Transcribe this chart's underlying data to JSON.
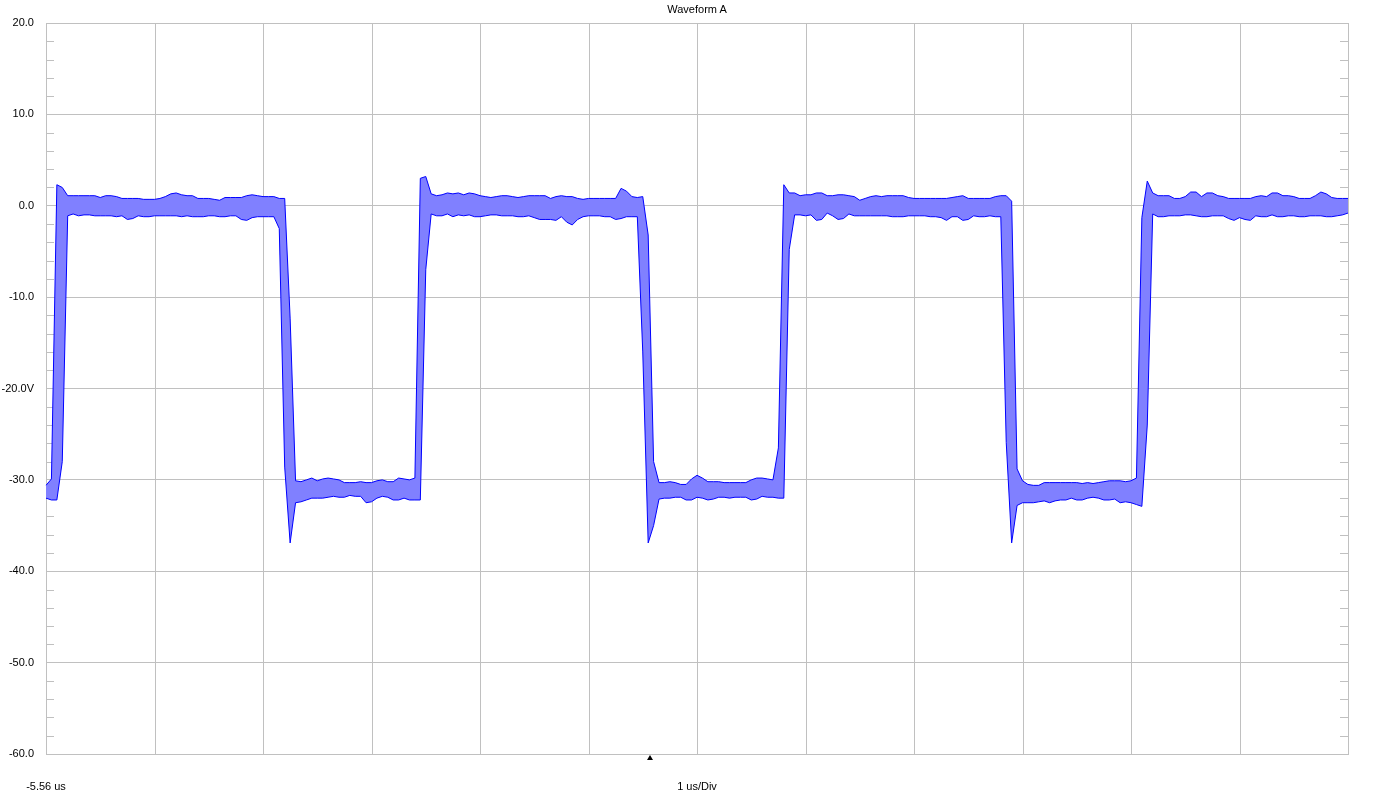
{
  "chart_data": {
    "type": "line",
    "title": "Waveform A",
    "xlabel": "1 us/Div",
    "annotations": [
      "-5.56 us"
    ],
    "categories": [
      null,
      null,
      null,
      null,
      null,
      null,
      null,
      null,
      null,
      null,
      null,
      null,
      null,
      null,
      null,
      null,
      null,
      null,
      null,
      null,
      null,
      null,
      null,
      null,
      null,
      null,
      null,
      null,
      null,
      null,
      null,
      null,
      null,
      null,
      null,
      null,
      null,
      null,
      null,
      null,
      null,
      null,
      null,
      null,
      null,
      null,
      null,
      null,
      null,
      null,
      null,
      null,
      null,
      null,
      null,
      null,
      null,
      null,
      null,
      null,
      null,
      null,
      null,
      null,
      null,
      null,
      null,
      null,
      null,
      null,
      null,
      null,
      null,
      null,
      null,
      null,
      null,
      null,
      null,
      null,
      null,
      null,
      null,
      null,
      null,
      null,
      null,
      null,
      null,
      null,
      null,
      null,
      null,
      null,
      null,
      null,
      null,
      null,
      null,
      null,
      null,
      null,
      null,
      null,
      null,
      null,
      null,
      null,
      null,
      null,
      null,
      null,
      null,
      null,
      null,
      null,
      null,
      null,
      null,
      null,
      null,
      null,
      null,
      null,
      null,
      null,
      null,
      null,
      null,
      null,
      null,
      null,
      null,
      null,
      null,
      null,
      null,
      null,
      null,
      null,
      null,
      null,
      null,
      null,
      null,
      null,
      null,
      null,
      null,
      null,
      null,
      null,
      null,
      null,
      null,
      null,
      null,
      null,
      null,
      null,
      null,
      null,
      null,
      null,
      null,
      null,
      null,
      null,
      null,
      null,
      null,
      null,
      null,
      null,
      null,
      null,
      null,
      null,
      null,
      null,
      null,
      null,
      null,
      null,
      null,
      null,
      null,
      null,
      null,
      null,
      null,
      null,
      null,
      null,
      null,
      null,
      null,
      null,
      null,
      null,
      null,
      null,
      null,
      null,
      null,
      null,
      null,
      null,
      null,
      null,
      null,
      null,
      null,
      null,
      null,
      null,
      null,
      null,
      null,
      null,
      null,
      null,
      null,
      null,
      null,
      null,
      null,
      null,
      null,
      null,
      null,
      null,
      null,
      null,
      null,
      null,
      null,
      null,
      null,
      null,
      null
    ],
    "series": [
      {
        "color": "#0000ff",
        "values": [
          -30.6,
          -29.9,
          2.3,
          2.0,
          1.1,
          1.1,
          1.1,
          1.1,
          1.1,
          1.1,
          0.9,
          1.1,
          1.1,
          1.0,
          0.8,
          0.8,
          0.8,
          0.8,
          0.7,
          0.7,
          0.7,
          0.8,
          1.0,
          1.3,
          1.4,
          1.2,
          1.1,
          1.1,
          0.8,
          0.8,
          0.8,
          0.7,
          0.6,
          0.9,
          0.9,
          0.9,
          0.9,
          1.1,
          1.2,
          1.1,
          1.0,
          1.0,
          1.0,
          0.8,
          0.8,
          -12.3,
          -30.1,
          -30.2,
          -30.0,
          -29.8,
          -30.1,
          -29.9,
          -29.8,
          -29.9,
          -30.0,
          -30.3,
          -30.3,
          -30.3,
          -30.2,
          -30.3,
          -30.3,
          -30.1,
          -30.0,
          -30.2,
          -30.2,
          -29.8,
          -29.9,
          -30.0,
          -29.8,
          3.0,
          3.2,
          1.3,
          1.1,
          1.2,
          1.4,
          1.3,
          1.4,
          1.2,
          1.4,
          1.3,
          1.1,
          1.0,
          0.9,
          1.0,
          1.1,
          1.1,
          1.0,
          0.9,
          1.0,
          1.1,
          1.1,
          1.1,
          1.1,
          0.8,
          1.0,
          1.1,
          1.0,
          1.0,
          0.8,
          0.7,
          0.8,
          0.8,
          0.8,
          0.8,
          0.8,
          0.8,
          1.9,
          1.6,
          1.0,
          0.9,
          1.0,
          -3.2,
          -28.0,
          -30.3,
          -30.3,
          -30.2,
          -30.3,
          -30.5,
          -30.5,
          -29.9,
          -29.5,
          -29.8,
          -30.2,
          -30.2,
          -30.2,
          -30.3,
          -30.3,
          -30.3,
          -30.3,
          -30.3,
          -30.0,
          -29.8,
          -29.8,
          -29.9,
          -30.0,
          -26.5,
          2.3,
          1.4,
          1.4,
          1.1,
          1.2,
          1.2,
          1.4,
          1.4,
          1.1,
          1.1,
          1.2,
          1.2,
          1.1,
          1.0,
          0.6,
          0.8,
          1.0,
          1.1,
          1.0,
          1.1,
          1.1,
          1.1,
          1.1,
          0.9,
          0.8,
          0.8,
          0.8,
          0.8,
          0.8,
          0.8,
          0.8,
          0.9,
          1.0,
          1.1,
          0.8,
          0.8,
          0.8,
          0.8,
          0.8,
          1.0,
          1.1,
          1.1,
          0.5,
          -28.8,
          -30.1,
          -30.5,
          -30.6,
          -30.6,
          -30.3,
          -30.3,
          -30.3,
          -30.3,
          -30.3,
          -30.3,
          -30.3,
          -30.4,
          -30.3,
          -30.4,
          -30.3,
          -30.2,
          -30.1,
          -30.1,
          -30.1,
          -30.2,
          -30.1,
          -29.8,
          -1.3,
          2.7,
          1.4,
          1.1,
          1.1,
          1.1,
          0.8,
          0.8,
          1.0,
          1.5,
          1.5,
          1.0,
          1.4,
          1.4,
          1.1,
          1.0,
          0.8,
          0.8,
          0.8,
          0.8,
          0.8,
          1.0,
          1.1,
          1.0,
          1.4,
          1.4,
          1.1,
          1.1,
          1.0,
          0.8,
          0.8,
          0.8,
          1.1,
          1.5,
          1.3,
          0.9,
          0.8,
          0.8,
          0.8
        ],
        "upper": [
          -30.6,
          -29.9,
          2.3,
          2.0,
          1.1,
          1.1,
          1.1,
          1.1,
          1.1,
          1.1,
          0.9,
          1.1,
          1.1,
          1.0,
          0.8,
          0.8,
          0.8,
          0.8,
          0.7,
          0.7,
          0.7,
          0.8,
          1.0,
          1.3,
          1.4,
          1.2,
          1.1,
          1.1,
          0.8,
          0.8,
          0.8,
          0.7,
          0.6,
          0.9,
          0.9,
          0.9,
          0.9,
          1.1,
          1.2,
          1.1,
          1.0,
          1.0,
          1.0,
          0.8,
          0.8,
          -12.3,
          -30.1,
          -30.2,
          -30.0,
          -29.8,
          -30.1,
          -29.9,
          -29.8,
          -29.9,
          -30.0,
          -30.3,
          -30.3,
          -30.3,
          -30.2,
          -30.3,
          -30.3,
          -30.1,
          -30.0,
          -30.2,
          -30.2,
          -29.8,
          -29.9,
          -30.0,
          -29.8,
          3.0,
          3.2,
          1.3,
          1.1,
          1.2,
          1.4,
          1.3,
          1.4,
          1.2,
          1.4,
          1.3,
          1.1,
          1.0,
          0.9,
          1.0,
          1.1,
          1.1,
          1.0,
          0.9,
          1.0,
          1.1,
          1.1,
          1.1,
          1.1,
          0.8,
          1.0,
          1.1,
          1.0,
          1.0,
          0.8,
          0.7,
          0.8,
          0.8,
          0.8,
          0.8,
          0.8,
          0.8,
          1.9,
          1.6,
          1.0,
          0.9,
          1.0,
          -3.2,
          -28.0,
          -30.3,
          -30.3,
          -30.2,
          -30.3,
          -30.5,
          -30.5,
          -29.9,
          -29.5,
          -29.8,
          -30.2,
          -30.2,
          -30.2,
          -30.3,
          -30.3,
          -30.3,
          -30.3,
          -30.3,
          -30.0,
          -29.8,
          -29.8,
          -29.9,
          -30.0,
          -26.5,
          2.3,
          1.4,
          1.4,
          1.1,
          1.2,
          1.2,
          1.4,
          1.4,
          1.1,
          1.1,
          1.2,
          1.2,
          1.1,
          1.0,
          0.6,
          0.8,
          1.0,
          1.1,
          1.0,
          1.1,
          1.1,
          1.1,
          1.1,
          0.9,
          0.8,
          0.8,
          0.8,
          0.8,
          0.8,
          0.8,
          0.8,
          0.9,
          1.0,
          1.1,
          0.8,
          0.8,
          0.8,
          0.8,
          0.8,
          1.0,
          1.1,
          1.1,
          0.5,
          -28.8,
          -30.1,
          -30.5,
          -30.6,
          -30.6,
          -30.3,
          -30.3,
          -30.3,
          -30.3,
          -30.3,
          -30.3,
          -30.3,
          -30.4,
          -30.3,
          -30.4,
          -30.3,
          -30.2,
          -30.1,
          -30.1,
          -30.1,
          -30.2,
          -30.1,
          -29.8,
          -1.3,
          2.7,
          1.4,
          1.1,
          1.1,
          1.1,
          0.8,
          0.8,
          1.0,
          1.5,
          1.5,
          1.0,
          1.4,
          1.4,
          1.1,
          1.0,
          0.8,
          0.8,
          0.8,
          0.8,
          0.8,
          1.0,
          1.1,
          1.0,
          1.4,
          1.4,
          1.1,
          1.1,
          1.0,
          0.8,
          0.8,
          0.8,
          1.1,
          1.5,
          1.3,
          0.9,
          0.8,
          0.8,
          0.8
        ],
        "lower": [
          -32.0,
          -32.2,
          -32.2,
          -28.0,
          -1.1,
          -0.9,
          -1.1,
          -1.0,
          -1.0,
          -1.1,
          -1.1,
          -1.1,
          -1.1,
          -1.2,
          -1.1,
          -1.5,
          -1.4,
          -1.1,
          -1.2,
          -1.2,
          -1.1,
          -1.1,
          -1.1,
          -1.1,
          -1.1,
          -1.2,
          -1.1,
          -1.2,
          -1.2,
          -1.2,
          -1.1,
          -1.1,
          -1.2,
          -1.2,
          -1.1,
          -1.1,
          -1.5,
          -1.6,
          -1.3,
          -1.2,
          -1.2,
          -1.2,
          -1.2,
          -2.5,
          -28.6,
          -36.9,
          -32.5,
          -32.4,
          -32.2,
          -32.0,
          -32.0,
          -32.0,
          -31.9,
          -31.8,
          -31.9,
          -31.9,
          -31.7,
          -31.8,
          -31.8,
          -32.5,
          -32.4,
          -32.0,
          -31.8,
          -31.9,
          -32.2,
          -32.2,
          -32.0,
          -32.2,
          -32.2,
          -32.2,
          -7.0,
          -0.9,
          -1.1,
          -1.1,
          -0.9,
          -1.2,
          -1.0,
          -1.1,
          -1.0,
          -1.2,
          -1.2,
          -1.1,
          -1.0,
          -1.0,
          -1.1,
          -1.1,
          -1.1,
          -1.2,
          -1.2,
          -1.1,
          -1.3,
          -1.5,
          -1.5,
          -1.5,
          -1.6,
          -1.2,
          -1.8,
          -2.1,
          -1.5,
          -1.2,
          -1.1,
          -1.1,
          -1.1,
          -1.2,
          -1.2,
          -1.5,
          -1.4,
          -1.2,
          -1.2,
          -1.2,
          -16.0,
          -36.9,
          -35.0,
          -32.1,
          -32.0,
          -32.0,
          -31.9,
          -31.9,
          -32.2,
          -32.2,
          -31.9,
          -32.0,
          -32.2,
          -32.1,
          -31.9,
          -31.9,
          -32.0,
          -31.9,
          -31.9,
          -31.9,
          -32.2,
          -32.1,
          -31.8,
          -31.9,
          -31.9,
          -32.0,
          -32.0,
          -4.8,
          -1.0,
          -1.0,
          -1.1,
          -1.0,
          -1.6,
          -1.5,
          -0.8,
          -1.1,
          -1.5,
          -1.4,
          -0.9,
          -1.1,
          -1.1,
          -1.1,
          -1.1,
          -1.1,
          -1.1,
          -1.1,
          -1.2,
          -1.2,
          -1.2,
          -1.1,
          -1.1,
          -1.1,
          -1.1,
          -1.2,
          -1.2,
          -1.3,
          -1.6,
          -1.2,
          -1.2,
          -1.6,
          -1.5,
          -1.1,
          -1.2,
          -1.2,
          -1.1,
          -1.2,
          -1.2,
          -25.9,
          -36.9,
          -32.8,
          -32.5,
          -32.5,
          -32.5,
          -32.4,
          -32.3,
          -32.5,
          -32.3,
          -32.2,
          -32.2,
          -32.0,
          -32.2,
          -32.2,
          -32.0,
          -31.9,
          -32.0,
          -32.2,
          -32.2,
          -32.1,
          -32.5,
          -32.4,
          -32.5,
          -32.7,
          -32.9,
          -24.0,
          -0.9,
          -1.2,
          -1.2,
          -1.1,
          -1.1,
          -1.1,
          -1.0,
          -1.0,
          -1.1,
          -1.2,
          -1.2,
          -1.1,
          -1.1,
          -1.1,
          -1.4,
          -1.6,
          -1.3,
          -1.5,
          -1.6,
          -1.1,
          -1.2,
          -1.2,
          -1.0,
          -1.2,
          -1.2,
          -1.1,
          -1.1,
          -1.2,
          -1.2,
          -1.1,
          -1.1,
          -1.1,
          -1.2,
          -1.2,
          -1.1,
          -1.0,
          -0.8
        ]
      },
      {
        "color": "#0000ff",
        "values": [
          -32.0,
          -32.2,
          -32.2,
          -28.0,
          -1.1,
          -0.9,
          -1.1,
          -1.0,
          -1.0,
          -1.1,
          -1.1,
          -1.1,
          -1.1,
          -1.2,
          -1.1,
          -1.5,
          -1.4,
          -1.1,
          -1.2,
          -1.2,
          -1.1,
          -1.1,
          -1.1,
          -1.1,
          -1.1,
          -1.2,
          -1.1,
          -1.2,
          -1.2,
          -1.2,
          -1.1,
          -1.1,
          -1.2,
          -1.2,
          -1.1,
          -1.1,
          -1.5,
          -1.6,
          -1.3,
          -1.2,
          -1.2,
          -1.2,
          -1.2,
          -2.5,
          -28.6,
          -36.9,
          -32.5,
          -32.4,
          -32.2,
          -32.0,
          -32.0,
          -32.0,
          -31.9,
          -31.8,
          -31.9,
          -31.9,
          -31.7,
          -31.8,
          -31.8,
          -32.5,
          -32.4,
          -32.0,
          -31.8,
          -31.9,
          -32.2,
          -32.2,
          -32.0,
          -32.2,
          -32.2,
          -32.2,
          -7.0,
          -0.9,
          -1.1,
          -1.1,
          -0.9,
          -1.2,
          -1.0,
          -1.1,
          -1.0,
          -1.2,
          -1.2,
          -1.1,
          -1.0,
          -1.0,
          -1.1,
          -1.1,
          -1.1,
          -1.2,
          -1.2,
          -1.1,
          -1.3,
          -1.5,
          -1.5,
          -1.5,
          -1.6,
          -1.2,
          -1.8,
          -2.1,
          -1.5,
          -1.2,
          -1.1,
          -1.1,
          -1.1,
          -1.2,
          -1.2,
          -1.5,
          -1.4,
          -1.2,
          -1.2,
          -1.2,
          -16.0,
          -36.9,
          -35.0,
          -32.1,
          -32.0,
          -32.0,
          -31.9,
          -31.9,
          -32.2,
          -32.2,
          -31.9,
          -32.0,
          -32.2,
          -32.1,
          -31.9,
          -31.9,
          -32.0,
          -31.9,
          -31.9,
          -31.9,
          -32.2,
          -32.1,
          -31.8,
          -31.9,
          -31.9,
          -32.0,
          -32.0,
          -4.8,
          -1.0,
          -1.0,
          -1.1,
          -1.0,
          -1.6,
          -1.5,
          -0.8,
          -1.1,
          -1.5,
          -1.4,
          -0.9,
          -1.1,
          -1.1,
          -1.1,
          -1.1,
          -1.1,
          -1.1,
          -1.1,
          -1.2,
          -1.2,
          -1.2,
          -1.1,
          -1.1,
          -1.1,
          -1.1,
          -1.2,
          -1.2,
          -1.3,
          -1.6,
          -1.2,
          -1.2,
          -1.6,
          -1.5,
          -1.1,
          -1.2,
          -1.2,
          -1.1,
          -1.2,
          -1.2,
          -25.9,
          -36.9,
          -32.8,
          -32.5,
          -32.5,
          -32.5,
          -32.4,
          -32.3,
          -32.5,
          -32.3,
          -32.2,
          -32.2,
          -32.0,
          -32.2,
          -32.2,
          -32.0,
          -31.9,
          -32.0,
          -32.2,
          -32.2,
          -32.1,
          -32.5,
          -32.4,
          -32.5,
          -32.7,
          -32.9,
          -24.0,
          -0.9,
          -1.2,
          -1.2,
          -1.1,
          -1.1,
          -1.1,
          -1.0,
          -1.0,
          -1.1,
          -1.2,
          -1.2,
          -1.1,
          -1.1,
          -1.1,
          -1.4,
          -1.6,
          -1.3,
          -1.5,
          -1.6,
          -1.1,
          -1.2,
          -1.2,
          -1.0,
          -1.2,
          -1.2,
          -1.1,
          -1.1,
          -1.2,
          -1.2,
          -1.1,
          -1.1,
          -1.1,
          -1.2,
          -1.2,
          -1.1,
          -1.0,
          -0.8
        ]
      }
    ],
    "ylim": [
      -60,
      20
    ],
    "yticks": [
      {
        "value": -60,
        "label": "-60.0"
      },
      {
        "value": -58,
        "label": null
      },
      {
        "value": -56,
        "label": null
      },
      {
        "value": -54,
        "label": null
      },
      {
        "value": -52,
        "label": null
      },
      {
        "value": -50,
        "label": "-50.0"
      },
      {
        "value": -48,
        "label": null
      },
      {
        "value": -46,
        "label": null
      },
      {
        "value": -44,
        "label": null
      },
      {
        "value": -42,
        "label": null
      },
      {
        "value": -40,
        "label": "-40.0"
      },
      {
        "value": -38,
        "label": null
      },
      {
        "value": -36,
        "label": null
      },
      {
        "value": -34,
        "label": null
      },
      {
        "value": -32,
        "label": null
      },
      {
        "value": -30,
        "label": "-30.0"
      },
      {
        "value": -28,
        "label": null
      },
      {
        "value": -26,
        "label": null
      },
      {
        "value": -24,
        "label": null
      },
      {
        "value": -22,
        "label": null
      },
      {
        "value": -20,
        "label": "-20.0V"
      },
      {
        "value": -18,
        "label": null
      },
      {
        "value": -16,
        "label": null
      },
      {
        "value": -14,
        "label": null
      },
      {
        "value": -12,
        "label": null
      },
      {
        "value": -10,
        "label": "-10.0"
      },
      {
        "value": -8,
        "label": null
      },
      {
        "value": -6,
        "label": null
      },
      {
        "value": -4,
        "label": null
      },
      {
        "value": -2,
        "label": null
      },
      {
        "value": 0,
        "label": "0.0"
      },
      {
        "value": 2,
        "label": null
      },
      {
        "value": 4,
        "label": null
      },
      {
        "value": 6,
        "label": null
      },
      {
        "value": 8,
        "label": null
      },
      {
        "value": 10,
        "label": "10.0"
      },
      {
        "value": 12,
        "label": null
      },
      {
        "value": 14,
        "label": null
      },
      {
        "value": 16,
        "label": null
      },
      {
        "value": 18,
        "label": null
      },
      {
        "value": 20,
        "label": "20.0"
      }
    ],
    "grid": true
  }
}
